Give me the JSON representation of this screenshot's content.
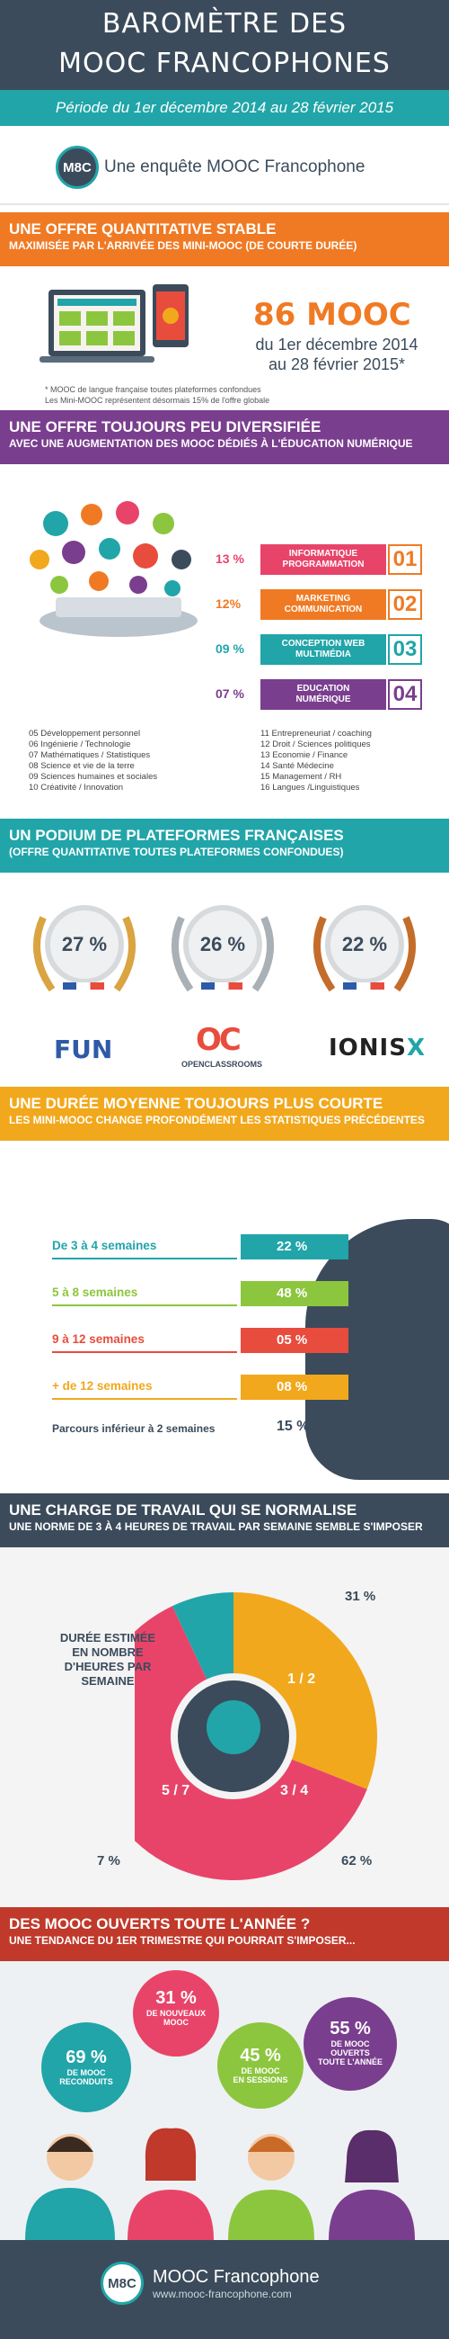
{
  "header": {
    "title_line1": "BAROMÈTRE DES",
    "title_line2": "MOOC FRANCOPHONES",
    "period": "Période du 1er décembre 2014 au 28 février 2015"
  },
  "brand": {
    "logo_text": "M8C",
    "tagline": "Une enquête MOOC Francophone"
  },
  "section1": {
    "title": "UNE OFFRE QUANTITATIVE STABLE",
    "subtitle": "MAXIMISÉE PAR L'ARRIVÉE DES MINI-MOOC (DE COURTE DURÉE)",
    "count": "86 MOOC",
    "date1": "du 1er décembre 2014",
    "date2": "au 28 février 2015*",
    "note1": "* MOOC de langue française toutes plateformes confondues",
    "note2": "Les Mini-MOOC représentent désormais 15% de l'offre globale"
  },
  "section2": {
    "title": "UNE OFFRE TOUJOURS PEU DIVERSIFIÉE",
    "subtitle": "AVEC UNE  AUGMENTATION  DES MOOC DÉDIÉS À L'ÉDUCATION NUMÉRIQUE",
    "categories": [
      {
        "pct": "13 %",
        "label1": "INFORMATIQUE",
        "label2": "PROGRAMMATION",
        "num": "01",
        "color": "#e8446a"
      },
      {
        "pct": "12%",
        "label1": "MARKETING",
        "label2": "COMMUNICATION",
        "num": "02",
        "color": "#f07a24"
      },
      {
        "pct": "09 %",
        "label1": "CONCEPTION WEB",
        "label2": "MULTIMÉDIA",
        "num": "03",
        "color": "#21a5a9"
      },
      {
        "pct": "07 %",
        "label1": "EDUCATION",
        "label2": "NUMÉRIQUE",
        "num": "04",
        "color": "#7a3e8e"
      }
    ],
    "list_left": [
      "05 Développement personnel",
      "06 Ingénierie / Technologie",
      "07 Mathématiques / Statistiques",
      "08 Science et vie de la terre",
      "09 Sciences humaines et sociales",
      "10 Créativité / Innovation"
    ],
    "list_right": [
      "11 Entrepreneuriat / coaching",
      "12 Droit / Sciences politiques",
      "13 Economie / Finance",
      "14 Santé Médecine",
      "15 Management / RH",
      "16 Langues /Linguistiques"
    ]
  },
  "section3": {
    "title": "UN PODIUM DE PLATEFORMES FRANÇAISES",
    "subtitle": "(OFFRE QUANTITATIVE TOUTES PLATEFORMES CONFONDUES)",
    "platforms": [
      {
        "pct": "27 %",
        "name": "FUN"
      },
      {
        "pct": "26 %",
        "name": "OC",
        "caption": "OPENCLASSROOMS"
      },
      {
        "pct": "22 %",
        "name": "IONIS",
        "suffix": "X"
      }
    ]
  },
  "section4": {
    "title": "UNE DURÉE MOYENNE TOUJOURS PLUS COURTE",
    "subtitle": "LES MINI-MOOC CHANGE PROFONDÉMENT LES STATISTIQUES PRÉCÉDENTES",
    "rows": [
      {
        "label": "De 3 à 4 semaines",
        "pct": "22 %",
        "color": "#21a5a9"
      },
      {
        "label": "5 à 8 semaines",
        "pct": "48 %",
        "color": "#8cc63e"
      },
      {
        "label": "9 à 12 semaines",
        "pct": "05 %",
        "color": "#e84c3d"
      },
      {
        "label": "+ de 12 semaines",
        "pct": "08 %",
        "color": "#f2a81c"
      },
      {
        "label": "Parcours inférieur à 2 semaines",
        "pct": "15 %",
        "color": "#3b4b5b"
      }
    ]
  },
  "section5": {
    "title": "UNE CHARGE DE TRAVAIL QUI SE NORMALISE",
    "subtitle": "UNE NORME DE 3 À 4  HEURES DE TRAVAIL PAR SEMAINE SEMBLE S'IMPOSER",
    "label": "DURÉE ESTIMÉE EN NOMBRE D'HEURES PAR SEMAINE",
    "slices": [
      {
        "label": "1 / 2",
        "pct": "31 %",
        "value": 31,
        "color": "#f2a81c"
      },
      {
        "label": "3 / 4",
        "pct": "62 %",
        "value": 62,
        "color": "#e8446a"
      },
      {
        "label": "5 / 7",
        "pct": "7 %",
        "value": 7,
        "color": "#21a5a9"
      }
    ]
  },
  "section6": {
    "title": "DES MOOC OUVERTS TOUTE L'ANNÉE ?",
    "subtitle": "UNE TENDANCE DU 1ER TRIMESTRE QUI POURRAIT S'IMPOSER...",
    "bubbles": [
      {
        "pct": "69 %",
        "desc1": "DE MOOC",
        "desc2": "RECONDUITS",
        "desc3": "",
        "color": "#21a5a9"
      },
      {
        "pct": "31 %",
        "desc1": "DE NOUVEAUX",
        "desc2": "MOOC",
        "desc3": "",
        "color": "#e8446a"
      },
      {
        "pct": "45 %",
        "desc1": "DE MOOC",
        "desc2": "EN SESSIONS",
        "desc3": "",
        "color": "#8cc63e"
      },
      {
        "pct": "55 %",
        "desc1": "DE MOOC",
        "desc2": "OUVERTS",
        "desc3": "TOUTE L'ANNÉE",
        "color": "#7a3e8e"
      }
    ]
  },
  "footer": {
    "logo_text": "M8C",
    "name": "MOOC Francophone",
    "url": "www.mooc-francophone.com"
  }
}
